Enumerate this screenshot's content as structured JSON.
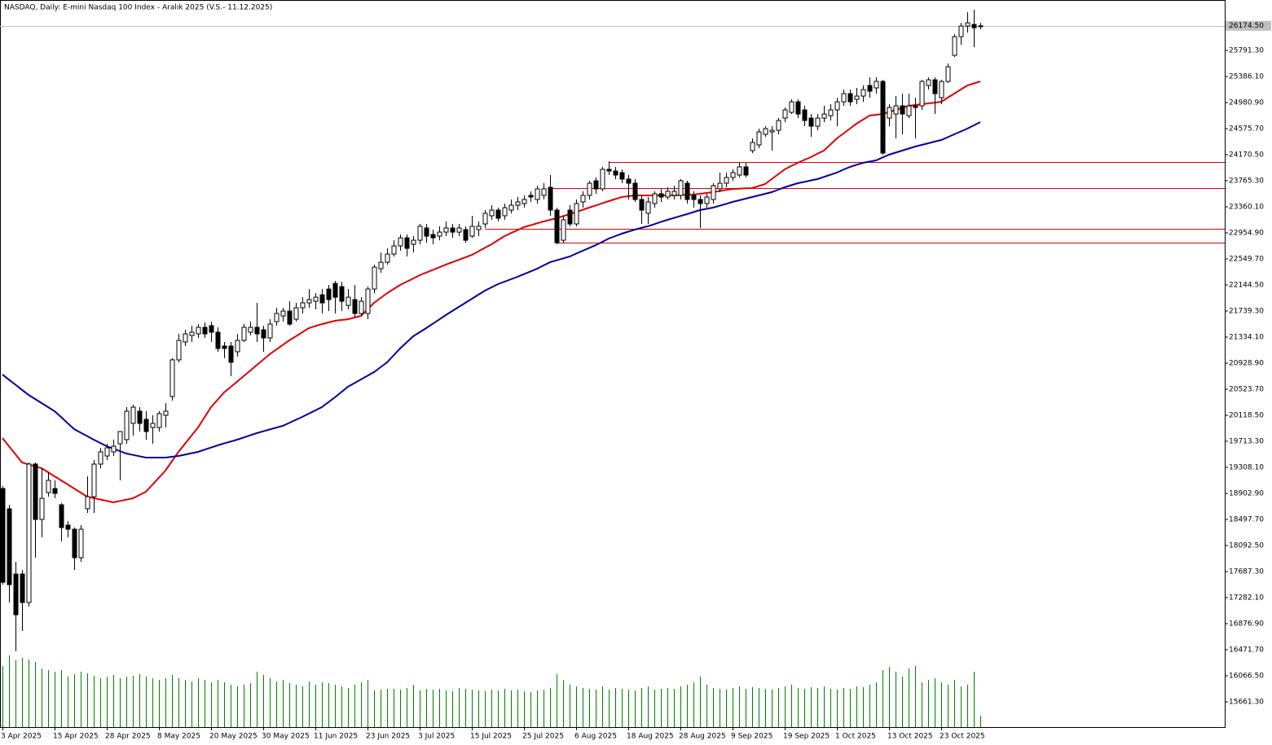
{
  "chart_data": {
    "type": "candlestick",
    "title": "NASDAQ, Daily:  E-mini Nasdaq 100 Index - Aralık 2025 (V.S.- 11.12.2025)",
    "categories": [
      "3 Apr 2025",
      null,
      null,
      null,
      null,
      null,
      null,
      null,
      "15 Apr 2025",
      null,
      null,
      null,
      null,
      null,
      null,
      null,
      "28 Apr 2025",
      null,
      null,
      null,
      null,
      null,
      null,
      null,
      "8 May 2025",
      null,
      null,
      null,
      null,
      null,
      null,
      null,
      "20 May 2025",
      null,
      null,
      null,
      null,
      null,
      null,
      null,
      "30 May 2025",
      null,
      null,
      null,
      null,
      null,
      null,
      null,
      "11 Jun 2025",
      null,
      null,
      null,
      null,
      null,
      null,
      null,
      "23 Jun 2025",
      null,
      null,
      null,
      null,
      null,
      null,
      null,
      "3 Jul 2025",
      null,
      null,
      null,
      null,
      null,
      null,
      null,
      "15 Jul 2025",
      null,
      null,
      null,
      null,
      null,
      null,
      null,
      "25 Jul 2025",
      null,
      null,
      null,
      null,
      null,
      null,
      null,
      "6 Aug 2025",
      null,
      null,
      null,
      null,
      null,
      null,
      null,
      "18 Aug 2025",
      null,
      null,
      null,
      null,
      null,
      null,
      null,
      "28 Aug 2025",
      null,
      null,
      null,
      null,
      null,
      null,
      null,
      "9 Sep 2025",
      null,
      null,
      null,
      null,
      null,
      null,
      null,
      "19 Sep 2025",
      null,
      null,
      null,
      null,
      null,
      null,
      null,
      "1 Oct 2025",
      null,
      null,
      null,
      null,
      null,
      null,
      null,
      "13 Oct 2025",
      null,
      null,
      null,
      null,
      null,
      null,
      null,
      "23 Oct 2025",
      null,
      null,
      null,
      null,
      null,
      null
    ],
    "open": [
      18979,
      18663,
      17649,
      17649,
      17206,
      19359,
      18498,
      18916,
      18979,
      18726,
      18410,
      18346,
      17903,
      18663,
      18852,
      19359,
      19485,
      19549,
      19675,
      19739,
      19992,
      20182,
      20055,
      19928,
      19928,
      20118,
      20410,
      20980,
      21258,
      21359,
      21384,
      21486,
      21511,
      21410,
      21195,
      21195,
      21106,
      21283,
      21410,
      21486,
      21448,
      21321,
      21574,
      21663,
      21739,
      21612,
      21790,
      21866,
      21891,
      21992,
      22081,
      22169,
      22119,
      21827,
      21917,
      21701,
      21701,
      22081,
      22397,
      22498,
      22625,
      22752,
      22878,
      22777,
      22840,
      23031,
      22929,
      22904,
      22967,
      23031,
      22967,
      23006,
      22904,
      23006,
      23094,
      23221,
      23309,
      23221,
      23309,
      23385,
      23411,
      23538,
      23474,
      23538,
      23664,
      23309,
      22840,
      23309,
      23094,
      23436,
      23538,
      23765,
      23639,
      23943,
      23917,
      23892,
      23791,
      23727,
      23474,
      23259,
      23411,
      23563,
      23512,
      23538,
      23538,
      23727,
      23538,
      23474,
      23411,
      23474,
      23639,
      23727,
      23816,
      23854,
      23981,
      24234,
      24323,
      24487,
      24525,
      24550,
      24740,
      24829,
      24993,
      24867,
      24740,
      24614,
      24740,
      24778,
      24867,
      24993,
      25120,
      25031,
      25082,
      25247,
      25209,
      25310,
      24740,
      24803,
      24930,
      24778,
      24930,
      24930,
      25247,
      25335,
      25057,
      25310,
      25715,
      26006,
      26171,
      26196,
      26171
    ],
    "high": [
      19017,
      18726,
      17839,
      17712,
      19384,
      19384,
      19295,
      19232,
      19106,
      18751,
      18473,
      18372,
      18410,
      19169,
      19422,
      19612,
      19675,
      19739,
      19865,
      20245,
      20283,
      20245,
      20182,
      20118,
      20182,
      20308,
      21005,
      21384,
      21448,
      21511,
      21536,
      21562,
      21574,
      21486,
      21258,
      21258,
      21384,
      21536,
      21574,
      21866,
      21511,
      21612,
      21790,
      21790,
      21891,
      21866,
      21954,
      22081,
      22017,
      22081,
      22144,
      22207,
      22195,
      22081,
      22144,
      21954,
      22119,
      22460,
      22650,
      22714,
      22840,
      22929,
      22929,
      22904,
      23094,
      23094,
      23006,
      23057,
      23132,
      23094,
      23094,
      23057,
      23221,
      23132,
      23309,
      23385,
      23347,
      23411,
      23474,
      23512,
      23538,
      23601,
      23689,
      23727,
      23854,
      23347,
      23221,
      23385,
      23474,
      23601,
      23765,
      23816,
      23981,
      24069,
      23981,
      23943,
      23854,
      23791,
      23538,
      23512,
      23601,
      23639,
      23664,
      23689,
      23791,
      23765,
      23601,
      23538,
      23563,
      23727,
      23892,
      23892,
      23943,
      24044,
      24044,
      24424,
      24576,
      24614,
      24614,
      24740,
      24905,
      25031,
      25031,
      24930,
      24803,
      24803,
      24930,
      24955,
      25057,
      25183,
      25183,
      25209,
      25247,
      25373,
      25373,
      25335,
      24955,
      25082,
      25120,
      25120,
      25057,
      25335,
      25373,
      25373,
      25335,
      25588,
      26044,
      26221,
      26386,
      26424,
      26221
    ],
    "low": [
      17484,
      17206,
      16446,
      16763,
      17143,
      17903,
      18219,
      18852,
      18827,
      18156,
      18219,
      17712,
      17839,
      18599,
      18599,
      19295,
      19422,
      19485,
      19106,
      19675,
      19802,
      19865,
      19739,
      19675,
      19865,
      19928,
      20346,
      20941,
      21195,
      21258,
      21321,
      21321,
      21258,
      21106,
      21005,
      20726,
      21030,
      21258,
      21359,
      21258,
      21106,
      21258,
      21511,
      21574,
      21511,
      21574,
      21701,
      21790,
      21764,
      21701,
      21739,
      21701,
      21739,
      21764,
      21638,
      21663,
      21612,
      22017,
      22334,
      22460,
      22587,
      22676,
      22587,
      22650,
      22777,
      22802,
      22777,
      22840,
      22904,
      22878,
      22904,
      22802,
      22878,
      22904,
      23031,
      23158,
      23132,
      23158,
      23259,
      23309,
      23347,
      23436,
      23411,
      23474,
      23221,
      22777,
      22802,
      23057,
      23057,
      23347,
      23474,
      23563,
      23601,
      23854,
      23791,
      23727,
      23474,
      23436,
      23094,
      23094,
      23347,
      23436,
      23474,
      23474,
      23474,
      23411,
      23347,
      23031,
      23347,
      23411,
      23588,
      23664,
      23765,
      23816,
      23816,
      24196,
      24272,
      24449,
      24234,
      24487,
      24677,
      24803,
      24740,
      24614,
      24449,
      24550,
      24677,
      24702,
      24614,
      24930,
      24930,
      24955,
      24993,
      25057,
      25120,
      24170,
      24614,
      24424,
      24487,
      24740,
      24424,
      24867,
      25183,
      24803,
      24955,
      25285,
      25690,
      25880,
      26070,
      25842,
      26120
    ],
    "close": [
      17522,
      17484,
      17016,
      17206,
      19359,
      18498,
      18827,
      19106,
      18903,
      18372,
      18346,
      17903,
      18346,
      18852,
      19359,
      19549,
      19612,
      19637,
      19865,
      20182,
      20245,
      19992,
      19865,
      19992,
      20144,
      20182,
      20980,
      21283,
      21384,
      21410,
      21486,
      21384,
      21410,
      21157,
      21157,
      20941,
      21283,
      21486,
      21486,
      21384,
      21321,
      21536,
      21701,
      21739,
      21536,
      21790,
      21866,
      21917,
      21954,
      21866,
      21917,
      21954,
      21891,
      21954,
      21701,
      21891,
      22081,
      22422,
      22498,
      22625,
      22752,
      22878,
      22714,
      22840,
      23057,
      22904,
      22878,
      22967,
      23031,
      22967,
      23031,
      22840,
      23057,
      23057,
      23259,
      23309,
      23183,
      23347,
      23385,
      23436,
      23474,
      23512,
      23639,
      23639,
      23309,
      22802,
      23158,
      23094,
      23411,
      23538,
      23727,
      23639,
      23943,
      23917,
      23854,
      23791,
      23727,
      23474,
      23309,
      23436,
      23563,
      23512,
      23601,
      23601,
      23765,
      23474,
      23474,
      23411,
      23512,
      23689,
      23727,
      23816,
      23892,
      23981,
      23854,
      24361,
      24525,
      24576,
      24550,
      24702,
      24867,
      24993,
      24803,
      24702,
      24614,
      24740,
      24803,
      24867,
      24993,
      25120,
      24993,
      25082,
      25183,
      25158,
      25310,
      24196,
      24905,
      24930,
      24803,
      24930,
      24905,
      25310,
      25335,
      25120,
      25310,
      25538,
      26006,
      26171,
      26221,
      26145,
      26174.5
    ],
    "overlays": [
      {
        "color": "#e00000",
        "values": [
          19764,
          19637,
          19511,
          19384,
          19354,
          19325,
          19295,
          19232,
          19169,
          19106,
          19043,
          18979,
          18916,
          18852,
          18830,
          18808,
          18786,
          18764,
          18785,
          18806,
          18827,
          18878,
          18928,
          19038,
          19147,
          19257,
          19403,
          19549,
          19675,
          19802,
          19928,
          20087,
          20245,
          20359,
          20473,
          20557,
          20642,
          20726,
          20812,
          20897,
          20983,
          21068,
          21140,
          21211,
          21283,
          21346,
          21410,
          21473,
          21505,
          21536,
          21562,
          21587,
          21600,
          21612,
          21638,
          21663,
          21765,
          21866,
          21942,
          22017,
          22081,
          22144,
          22195,
          22245,
          22296,
          22337,
          22378,
          22419,
          22460,
          22498,
          22536,
          22574,
          22612,
          22667,
          22722,
          22777,
          22841,
          22904,
          22951,
          22997,
          23044,
          23073,
          23103,
          23132,
          23158,
          23183,
          23215,
          23246,
          23280,
          23313,
          23347,
          23381,
          23415,
          23449,
          23481,
          23512,
          23525,
          23538,
          23538,
          23538,
          23538,
          23538,
          23538,
          23538,
          23542,
          23546,
          23550,
          23563,
          23575,
          23588,
          23605,
          23622,
          23639,
          23643,
          23647,
          23651,
          23683,
          23715,
          23791,
          23867,
          23943,
          23994,
          24044,
          24089,
          24133,
          24184,
          24234,
          24329,
          24424,
          24500,
          24576,
          24652,
          24715,
          24778,
          24791,
          24803,
          24835,
          24867,
          24899,
          24930,
          24943,
          24955,
          24968,
          24980,
          24993,
          25057,
          25120,
          25184,
          25247,
          25279,
          25310
        ]
      },
      {
        "color": "#00009c",
        "values": [
          20751,
          20672,
          20593,
          20514,
          20435,
          20372,
          20309,
          20245,
          20182,
          20089,
          19996,
          19903,
          19848,
          19794,
          19739,
          19688,
          19637,
          19599,
          19561,
          19523,
          19502,
          19481,
          19460,
          19460,
          19460,
          19460,
          19473,
          19485,
          19506,
          19528,
          19549,
          19583,
          19616,
          19650,
          19680,
          19709,
          19739,
          19773,
          19806,
          19840,
          19869,
          19897,
          19926,
          19954,
          20000,
          20047,
          20093,
          20144,
          20194,
          20245,
          20321,
          20397,
          20480,
          20562,
          20619,
          20676,
          20733,
          20790,
          20866,
          20941,
          21049,
          21157,
          21252,
          21346,
          21410,
          21473,
          21541,
          21608,
          21676,
          21739,
          21803,
          21866,
          21929,
          21993,
          22056,
          22107,
          22157,
          22195,
          22233,
          22271,
          22313,
          22355,
          22397,
          22448,
          22498,
          22528,
          22557,
          22587,
          22632,
          22676,
          22720,
          22764,
          22815,
          22866,
          22904,
          22942,
          22974,
          23006,
          23032,
          23057,
          23091,
          23124,
          23158,
          23187,
          23217,
          23246,
          23278,
          23309,
          23328,
          23347,
          23377,
          23406,
          23436,
          23461,
          23487,
          23512,
          23537,
          23563,
          23588,
          23626,
          23664,
          23696,
          23727,
          23748,
          23770,
          23791,
          23825,
          23858,
          23892,
          23937,
          23981,
          24013,
          24044,
          24063,
          24082,
          24126,
          24170,
          24202,
          24234,
          24266,
          24297,
          24323,
          24348,
          24374,
          24399,
          24443,
          24487,
          24532,
          24576,
          24627,
          24677
        ]
      }
    ],
    "volume": {
      "color": "#008000",
      "values": [
        75,
        88,
        82,
        85,
        83,
        80,
        72,
        70,
        68,
        70,
        62,
        65,
        68,
        66,
        63,
        60,
        62,
        64,
        60,
        62,
        63,
        65,
        62,
        60,
        58,
        60,
        64,
        60,
        58,
        56,
        60,
        58,
        55,
        58,
        55,
        52,
        50,
        52,
        54,
        68,
        64,
        60,
        56,
        58,
        54,
        52,
        50,
        56,
        52,
        55,
        54,
        52,
        50,
        48,
        52,
        55,
        58,
        45,
        46,
        47,
        47,
        46,
        48,
        52,
        45,
        47,
        46,
        47,
        45,
        44,
        48,
        47,
        46,
        45,
        44,
        46,
        45,
        47,
        45,
        46,
        44,
        43,
        45,
        46,
        48,
        65,
        58,
        52,
        50,
        48,
        47,
        46,
        50,
        46,
        48,
        47,
        46,
        45,
        48,
        50,
        46,
        47,
        48,
        47,
        50,
        52,
        55,
        62,
        52,
        48,
        47,
        46,
        48,
        50,
        47,
        49,
        48,
        47,
        46,
        48,
        50,
        52,
        48,
        47,
        49,
        48,
        50,
        47,
        46,
        48,
        47,
        50,
        49,
        52,
        55,
        70,
        74,
        68,
        62,
        72,
        75,
        55,
        58,
        60,
        55,
        52,
        58,
        50,
        52,
        68,
        14
      ]
    },
    "levels": [
      {
        "value": 24057,
        "start": 93,
        "color": "#e00000"
      },
      {
        "value": 23651,
        "start": 84,
        "color": "#e00000"
      },
      {
        "value": 23018,
        "start": 74,
        "color": "#e00000"
      },
      {
        "value": 22802,
        "start": 85,
        "color": "#e00000"
      }
    ],
    "current_price": {
      "value": 26174.5,
      "label": "26174.50"
    },
    "ylim": [
      15268.8,
      26576.4
    ],
    "yticks": [
      {
        "value": 15661.3,
        "label": "15661.30"
      },
      {
        "value": 16066.5,
        "label": "16066.50"
      },
      {
        "value": 16471.7,
        "label": "16471.70"
      },
      {
        "value": 16876.9,
        "label": "16876.90"
      },
      {
        "value": 17282.1,
        "label": "17282.10"
      },
      {
        "value": 17687.3,
        "label": "17687.30"
      },
      {
        "value": 18092.5,
        "label": "18092.50"
      },
      {
        "value": 18497.7,
        "label": "18497.70"
      },
      {
        "value": 18902.9,
        "label": "18902.90"
      },
      {
        "value": 19308.1,
        "label": "19308.10"
      },
      {
        "value": 19713.3,
        "label": "19713.30"
      },
      {
        "value": 20118.5,
        "label": "20118.50"
      },
      {
        "value": 20523.7,
        "label": "20523.70"
      },
      {
        "value": 20928.9,
        "label": "20928.90"
      },
      {
        "value": 21334.1,
        "label": "21334.10"
      },
      {
        "value": 21739.3,
        "label": "21739.30"
      },
      {
        "value": 22144.5,
        "label": "22144.50"
      },
      {
        "value": 22549.7,
        "label": "22549.70"
      },
      {
        "value": 22954.9,
        "label": "22954.90"
      },
      {
        "value": 23360.1,
        "label": "23360.10"
      },
      {
        "value": 23765.3,
        "label": "23765.30"
      },
      {
        "value": 24170.5,
        "label": "24170.50"
      },
      {
        "value": 24575.7,
        "label": "24575.70"
      },
      {
        "value": 24980.9,
        "label": "24980.90"
      },
      {
        "value": 25386.1,
        "label": "25386.10"
      },
      {
        "value": 25791.3,
        "label": "25791.30"
      }
    ],
    "grid": false
  }
}
